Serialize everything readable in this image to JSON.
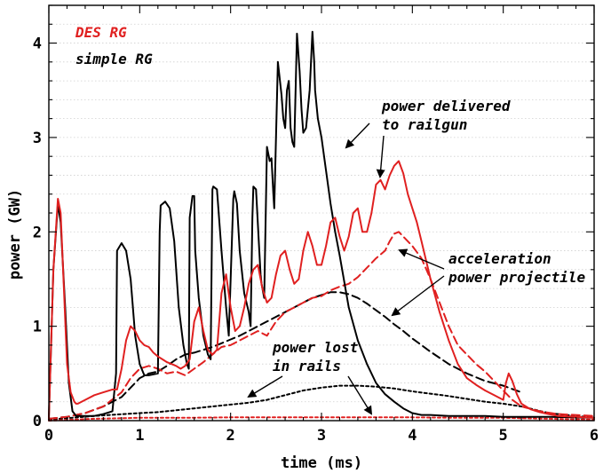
{
  "chart_data": {
    "type": "line",
    "xlabel": "time (ms)",
    "ylabel": "power (GW)",
    "xlim": [
      0,
      6
    ],
    "ylim": [
      0,
      4.4
    ],
    "xticks": [
      0,
      1,
      2,
      3,
      4,
      5,
      6
    ],
    "yticks": [
      0,
      1,
      2,
      3,
      4
    ],
    "grid": "horizontal dotted",
    "legend": {
      "position": "top-left",
      "entries": [
        {
          "label": "DES RG",
          "color": "#e02020"
        },
        {
          "label": "simple RG",
          "color": "#000000"
        }
      ]
    },
    "colors": {
      "des_rg": "#e02020",
      "simple_rg": "#000000"
    },
    "series": [
      {
        "group": "simple RG",
        "quantity": "power delivered to railgun",
        "style": "solid",
        "color": "#000000",
        "x": [
          0.0,
          0.05,
          0.1,
          0.13,
          0.18,
          0.22,
          0.26,
          0.3,
          0.4,
          0.5,
          0.6,
          0.7,
          0.74,
          0.75,
          0.8,
          0.85,
          0.9,
          0.95,
          1.0,
          1.05,
          1.1,
          1.2,
          1.22,
          1.23,
          1.28,
          1.33,
          1.38,
          1.43,
          1.48,
          1.52,
          1.54,
          1.55,
          1.58,
          1.6,
          1.61,
          1.65,
          1.7,
          1.75,
          1.78,
          1.8,
          1.81,
          1.85,
          1.9,
          1.95,
          1.98,
          2.03,
          2.04,
          2.07,
          2.1,
          2.15,
          2.2,
          2.22,
          2.24,
          2.25,
          2.28,
          2.31,
          2.33,
          2.34,
          2.37,
          2.4,
          2.43,
          2.45,
          2.47,
          2.48,
          2.52,
          2.56,
          2.58,
          2.6,
          2.62,
          2.64,
          2.66,
          2.68,
          2.7,
          2.73,
          2.76,
          2.78,
          2.8,
          2.83,
          2.87,
          2.9,
          2.92,
          2.93,
          2.96,
          3.0,
          3.05,
          3.1,
          3.15,
          3.2,
          3.3,
          3.4,
          3.5,
          3.6,
          3.7,
          3.8,
          3.9,
          4.0,
          4.1,
          4.2,
          4.4,
          4.6,
          4.8,
          5.0,
          5.2,
          5.5,
          6.0
        ],
        "y": [
          0.02,
          1.6,
          2.3,
          2.1,
          1.2,
          0.4,
          0.1,
          0.05,
          0.05,
          0.05,
          0.07,
          0.1,
          0.5,
          1.8,
          1.88,
          1.8,
          1.5,
          0.9,
          0.6,
          0.48,
          0.48,
          0.5,
          2.0,
          2.28,
          2.32,
          2.25,
          1.9,
          1.2,
          0.8,
          0.6,
          0.55,
          2.15,
          2.38,
          2.38,
          1.8,
          1.3,
          0.9,
          0.7,
          0.65,
          2.45,
          2.48,
          2.45,
          1.8,
          1.2,
          0.9,
          2.35,
          2.43,
          2.3,
          1.8,
          1.35,
          1.15,
          1.0,
          2.15,
          2.48,
          2.45,
          1.9,
          1.55,
          1.45,
          1.3,
          2.9,
          2.75,
          2.78,
          2.4,
          2.25,
          3.8,
          3.45,
          3.2,
          3.1,
          3.5,
          3.6,
          3.1,
          2.95,
          2.9,
          4.1,
          3.7,
          3.3,
          3.05,
          3.1,
          3.5,
          4.12,
          3.8,
          3.5,
          3.2,
          3.0,
          2.65,
          2.3,
          2.0,
          1.75,
          1.2,
          0.85,
          0.6,
          0.4,
          0.28,
          0.2,
          0.13,
          0.08,
          0.06,
          0.06,
          0.05,
          0.05,
          0.05,
          0.04,
          0.04,
          0.04,
          0.03
        ]
      },
      {
        "group": "DES RG",
        "quantity": "power delivered to railgun",
        "style": "solid",
        "color": "#e02020",
        "x": [
          0.0,
          0.05,
          0.1,
          0.13,
          0.17,
          0.2,
          0.24,
          0.28,
          0.3,
          0.32,
          0.36,
          0.4,
          0.5,
          0.6,
          0.7,
          0.75,
          0.8,
          0.85,
          0.9,
          0.95,
          1.0,
          1.05,
          1.1,
          1.15,
          1.2,
          1.25,
          1.3,
          1.35,
          1.4,
          1.45,
          1.5,
          1.55,
          1.6,
          1.65,
          1.7,
          1.75,
          1.8,
          1.85,
          1.9,
          1.95,
          2.0,
          2.05,
          2.1,
          2.15,
          2.2,
          2.25,
          2.3,
          2.35,
          2.4,
          2.45,
          2.5,
          2.55,
          2.6,
          2.65,
          2.7,
          2.75,
          2.8,
          2.85,
          2.9,
          2.95,
          3.0,
          3.05,
          3.1,
          3.15,
          3.2,
          3.25,
          3.3,
          3.35,
          3.4,
          3.45,
          3.5,
          3.55,
          3.6,
          3.65,
          3.7,
          3.75,
          3.8,
          3.85,
          3.9,
          3.95,
          4.0,
          4.05,
          4.1,
          4.2,
          4.3,
          4.4,
          4.5,
          4.6,
          4.7,
          4.8,
          4.9,
          5.0,
          5.03,
          5.06,
          5.1,
          5.15,
          5.2,
          5.3,
          5.4,
          5.5,
          5.6,
          5.8,
          6.0
        ],
        "y": [
          0.02,
          1.6,
          2.35,
          2.2,
          1.3,
          0.6,
          0.3,
          0.2,
          0.18,
          0.18,
          0.2,
          0.22,
          0.27,
          0.3,
          0.33,
          0.33,
          0.55,
          0.85,
          1.0,
          0.95,
          0.85,
          0.8,
          0.78,
          0.72,
          0.68,
          0.65,
          0.62,
          0.6,
          0.58,
          0.55,
          0.58,
          0.65,
          1.05,
          1.2,
          0.95,
          0.75,
          0.7,
          0.75,
          1.35,
          1.55,
          1.2,
          0.95,
          1.0,
          1.2,
          1.45,
          1.6,
          1.65,
          1.4,
          1.25,
          1.3,
          1.55,
          1.75,
          1.8,
          1.6,
          1.45,
          1.5,
          1.8,
          2.0,
          1.85,
          1.65,
          1.65,
          1.85,
          2.1,
          2.15,
          1.95,
          1.8,
          1.95,
          2.2,
          2.25,
          2.0,
          2.0,
          2.2,
          2.5,
          2.55,
          2.45,
          2.6,
          2.7,
          2.75,
          2.62,
          2.4,
          2.25,
          2.1,
          1.9,
          1.5,
          1.15,
          0.85,
          0.6,
          0.45,
          0.38,
          0.32,
          0.27,
          0.22,
          0.4,
          0.5,
          0.42,
          0.28,
          0.18,
          0.12,
          0.09,
          0.07,
          0.05,
          0.04,
          0.03
        ]
      },
      {
        "group": "simple RG",
        "quantity": "acceleration power projectile",
        "style": "dashed",
        "color": "#000000",
        "x": [
          0.0,
          0.2,
          0.4,
          0.6,
          0.8,
          0.9,
          1.0,
          1.1,
          1.2,
          1.3,
          1.4,
          1.5,
          1.6,
          1.7,
          1.8,
          1.9,
          2.0,
          2.1,
          2.2,
          2.3,
          2.4,
          2.5,
          2.6,
          2.7,
          2.8,
          2.9,
          3.0,
          3.1,
          3.2,
          3.3,
          3.4,
          3.5,
          3.6,
          3.7,
          3.8,
          3.9,
          4.0,
          4.1,
          4.2,
          4.4,
          4.6,
          4.8,
          5.0,
          5.2
        ],
        "y": [
          0.02,
          0.04,
          0.08,
          0.15,
          0.25,
          0.35,
          0.45,
          0.5,
          0.52,
          0.58,
          0.65,
          0.7,
          0.72,
          0.75,
          0.78,
          0.82,
          0.86,
          0.9,
          0.95,
          1.0,
          1.05,
          1.1,
          1.15,
          1.2,
          1.25,
          1.3,
          1.33,
          1.36,
          1.36,
          1.34,
          1.3,
          1.24,
          1.17,
          1.1,
          1.02,
          0.95,
          0.87,
          0.8,
          0.73,
          0.6,
          0.5,
          0.42,
          0.37,
          0.3
        ]
      },
      {
        "group": "DES RG",
        "quantity": "acceleration power projectile",
        "style": "dashed",
        "color": "#e02020",
        "x": [
          0.0,
          0.2,
          0.4,
          0.6,
          0.8,
          0.9,
          1.0,
          1.1,
          1.2,
          1.3,
          1.4,
          1.5,
          1.6,
          1.7,
          1.8,
          1.9,
          2.0,
          2.1,
          2.2,
          2.3,
          2.4,
          2.5,
          2.6,
          2.7,
          2.8,
          2.9,
          3.0,
          3.1,
          3.2,
          3.3,
          3.4,
          3.5,
          3.6,
          3.7,
          3.75,
          3.8,
          3.85,
          3.9,
          4.0,
          4.1,
          4.2,
          4.3,
          4.4,
          4.5,
          4.6,
          4.7,
          4.8,
          4.9,
          5.0,
          5.1,
          5.2,
          5.4,
          5.6,
          6.0
        ],
        "y": [
          0.02,
          0.04,
          0.08,
          0.15,
          0.3,
          0.45,
          0.55,
          0.58,
          0.55,
          0.5,
          0.52,
          0.48,
          0.55,
          0.62,
          0.7,
          0.78,
          0.8,
          0.85,
          0.9,
          0.95,
          0.9,
          1.05,
          1.15,
          1.2,
          1.25,
          1.3,
          1.32,
          1.38,
          1.42,
          1.45,
          1.52,
          1.62,
          1.72,
          1.8,
          1.9,
          1.98,
          2.0,
          1.95,
          1.85,
          1.72,
          1.5,
          1.25,
          1.0,
          0.8,
          0.7,
          0.6,
          0.52,
          0.42,
          0.32,
          0.22,
          0.15,
          0.1,
          0.07,
          0.05
        ]
      },
      {
        "group": "simple RG",
        "quantity": "power lost in rails",
        "style": "dotted",
        "color": "#000000",
        "x": [
          0.0,
          0.5,
          1.0,
          1.2,
          1.4,
          1.6,
          1.8,
          2.0,
          2.2,
          2.4,
          2.6,
          2.8,
          3.0,
          3.2,
          3.4,
          3.6,
          3.8,
          4.0,
          4.4,
          4.8,
          5.0,
          5.2,
          5.5,
          6.0
        ],
        "y": [
          0.01,
          0.05,
          0.08,
          0.09,
          0.11,
          0.13,
          0.15,
          0.17,
          0.19,
          0.22,
          0.27,
          0.32,
          0.35,
          0.37,
          0.37,
          0.36,
          0.34,
          0.31,
          0.26,
          0.2,
          0.18,
          0.15,
          0.08,
          0.03
        ]
      },
      {
        "group": "DES RG",
        "quantity": "power lost in rails",
        "style": "dotted",
        "color": "#e02020",
        "x": [
          0.0,
          0.5,
          1.0,
          1.5,
          2.0,
          2.5,
          3.0,
          3.5,
          4.0,
          4.5,
          5.0,
          5.5,
          6.0
        ],
        "y": [
          0.0,
          0.02,
          0.03,
          0.03,
          0.035,
          0.035,
          0.035,
          0.035,
          0.035,
          0.03,
          0.03,
          0.02,
          0.01
        ]
      }
    ],
    "annotations": [
      {
        "lines": [
          "power delivered",
          "to railgun"
        ]
      },
      {
        "lines": [
          "acceleration",
          "power projectile"
        ]
      },
      {
        "lines": [
          "power lost",
          "in rails"
        ]
      }
    ]
  }
}
